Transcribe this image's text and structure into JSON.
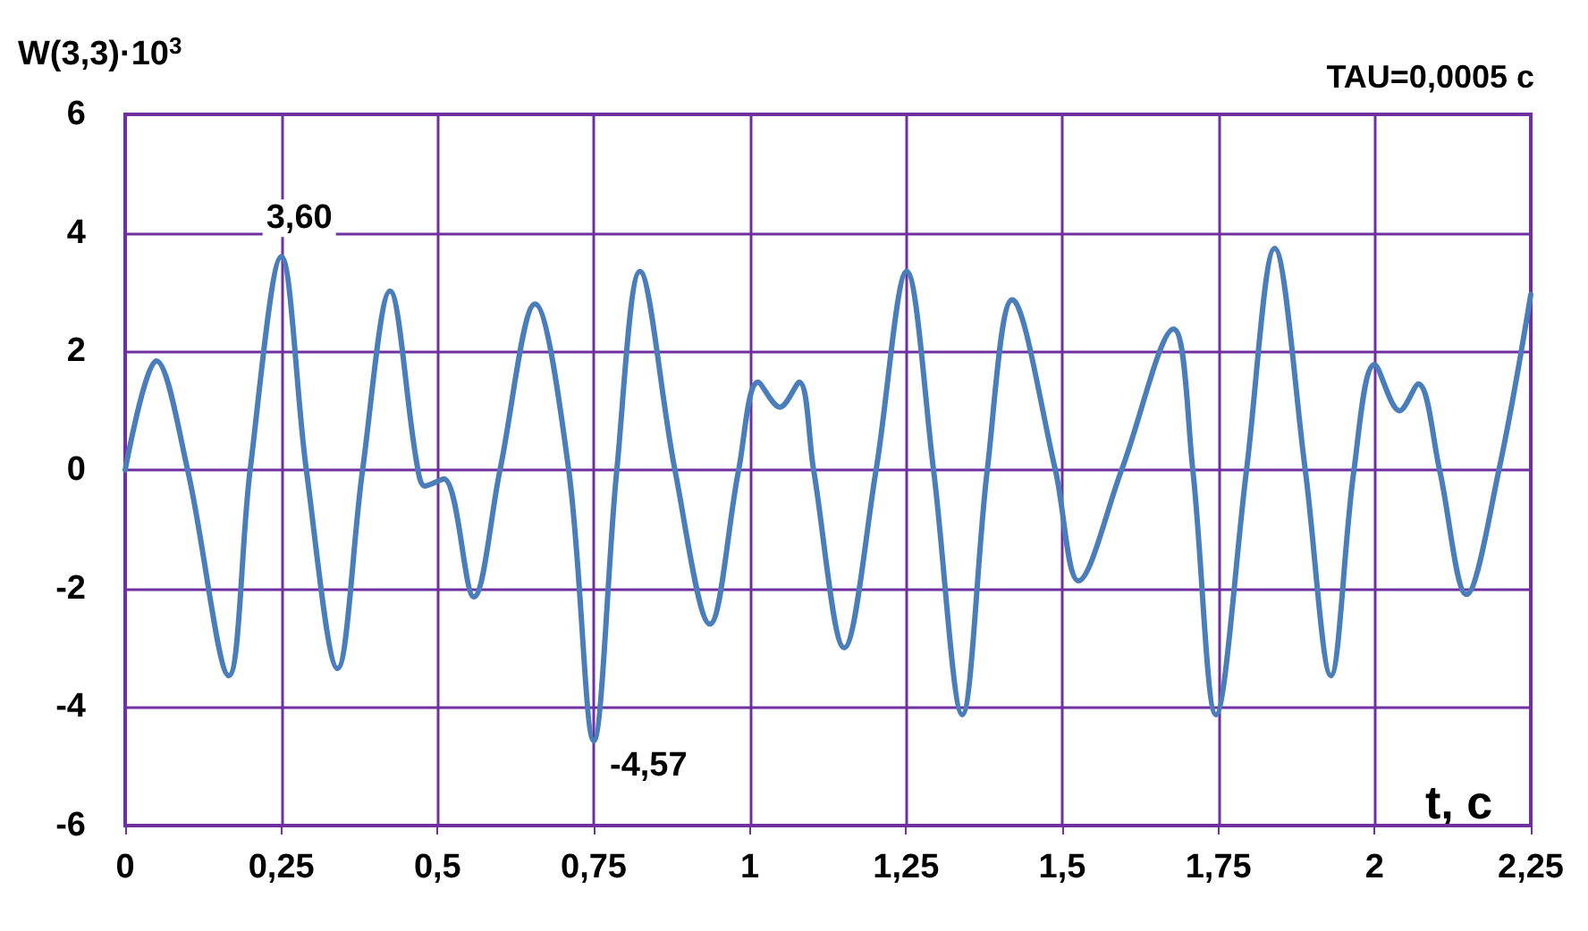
{
  "chart_data": {
    "type": "line",
    "ylabel": "W(3,3)·10$^{3}$",
    "xlabel": "t, c",
    "annotations": [
      {
        "text": "3,60",
        "x": 0.25,
        "y": 3.6
      },
      {
        "text": "-4,57",
        "x": 0.75,
        "y": -4.57
      },
      "TAU=0,0005 c"
    ],
    "x": [
      0,
      0.05,
      0.1,
      0.166,
      0.2,
      0.25,
      0.29,
      0.34,
      0.38,
      0.424,
      0.467,
      0.48,
      0.51,
      0.558,
      0.6,
      0.656,
      0.71,
      0.75,
      0.787,
      0.824,
      0.88,
      0.936,
      0.982,
      1.013,
      1.048,
      1.079,
      1.102,
      1.151,
      1.202,
      1.251,
      1.294,
      1.34,
      1.38,
      1.42,
      1.489,
      1.526,
      1.595,
      1.678,
      1.709,
      1.746,
      1.795,
      1.84,
      1.889,
      1.93,
      1.967,
      2.0,
      2.04,
      2.07,
      2.104,
      2.147,
      2.199,
      2.25
    ],
    "series": [
      {
        "color": "#4a7ebb",
        "values": [
          0,
          1.84,
          0,
          -3.47,
          0,
          3.6,
          0,
          -3.35,
          0,
          3.02,
          0.1,
          -0.27,
          -0.15,
          -2.14,
          0,
          2.8,
          0,
          -4.57,
          0,
          3.35,
          0,
          -2.6,
          0,
          1.48,
          1.06,
          1.48,
          0,
          -3.0,
          0,
          3.35,
          0,
          -4.13,
          0,
          2.87,
          0,
          -1.87,
          0,
          2.38,
          0,
          -4.13,
          0,
          3.74,
          0,
          -3.47,
          0,
          1.78,
          1.0,
          1.45,
          0,
          -2.1,
          0,
          2.96
        ]
      }
    ],
    "xlim": [
      0,
      2.25
    ],
    "xticks": [
      0,
      {
        "value": 0.25,
        "label": "0,25"
      },
      {
        "value": 0.5,
        "label": "0,5"
      },
      {
        "value": 0.75,
        "label": "0,75"
      },
      1,
      {
        "value": 1.25,
        "label": "1,25"
      },
      {
        "value": 1.5,
        "label": "1,5"
      },
      {
        "value": 1.75,
        "label": "1,75"
      },
      2,
      {
        "value": 2.25,
        "label": "2,25"
      }
    ],
    "ylim": [
      -6,
      6
    ],
    "yticks": [
      -6,
      -4,
      -2,
      0,
      2,
      4,
      6
    ],
    "grid": true,
    "marker": "none",
    "line_style": "solid"
  }
}
